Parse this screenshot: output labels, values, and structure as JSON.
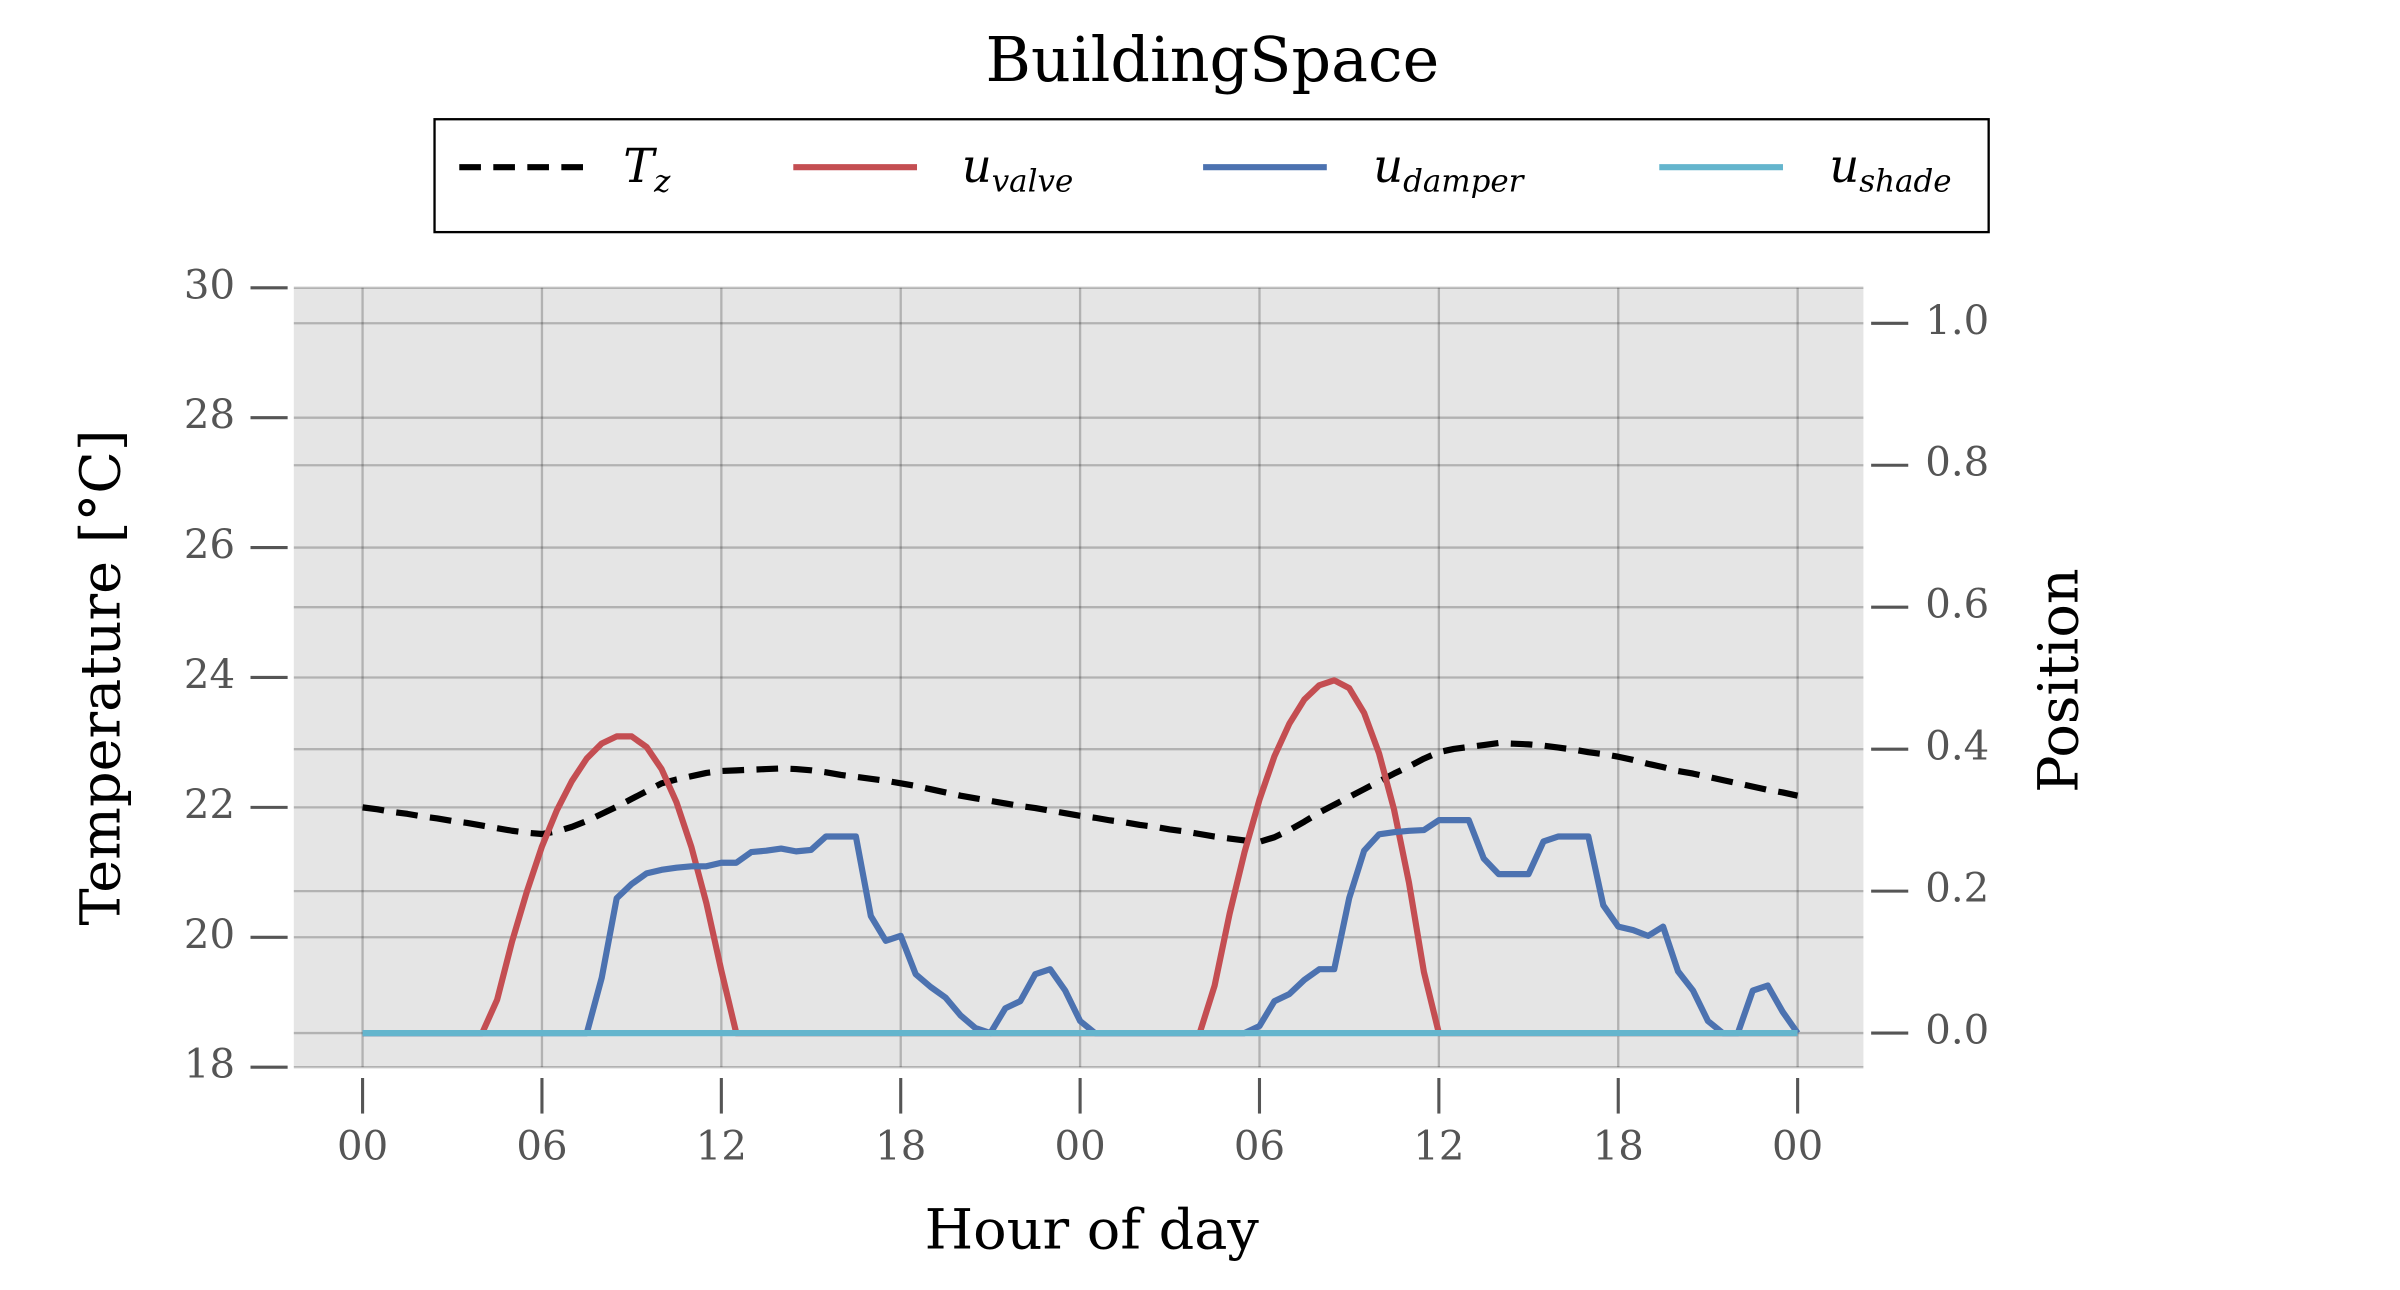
{
  "chart_data": {
    "type": "line",
    "title": "BuildingSpace",
    "xlabel": "Hour of day",
    "ylabel": "Temperature [°C]",
    "y2label": "Position",
    "legend": "upper center",
    "grid": true,
    "xlim": [
      -2.3,
      50.2
    ],
    "xticks": [
      {
        "value": 0,
        "label": "00"
      },
      {
        "value": 6,
        "label": "06"
      },
      {
        "value": 12,
        "label": "12"
      },
      {
        "value": 18,
        "label": "18"
      },
      {
        "value": 24,
        "label": "00"
      },
      {
        "value": 30,
        "label": "06"
      },
      {
        "value": 36,
        "label": "12"
      },
      {
        "value": 42,
        "label": "18"
      },
      {
        "value": 48,
        "label": "00"
      }
    ],
    "ylim": [
      18,
      30
    ],
    "yticks": [
      18,
      20,
      22,
      24,
      26,
      28,
      30
    ],
    "y2lim": [
      -0.048,
      1.05
    ],
    "y2ticks": [
      {
        "value": 0,
        "label": "0.0"
      },
      0.2,
      0.4,
      0.6,
      0.8,
      {
        "value": 1,
        "label": "1.0"
      }
    ],
    "x": [
      0,
      0.5,
      1,
      1.5,
      2,
      2.5,
      3,
      3.5,
      4,
      4.5,
      5,
      5.5,
      6,
      6.5,
      7,
      7.5,
      8,
      8.5,
      9,
      9.5,
      10,
      10.5,
      11,
      11.5,
      12,
      12.5,
      13,
      13.5,
      14,
      14.5,
      15,
      15.5,
      16,
      16.5,
      17,
      17.5,
      18,
      18.5,
      19,
      19.5,
      20,
      20.5,
      21,
      21.5,
      22,
      22.5,
      23,
      23.5,
      24,
      24.5,
      25,
      25.5,
      26,
      26.5,
      27,
      27.5,
      28,
      28.5,
      29,
      29.5,
      30,
      30.5,
      31,
      31.5,
      32,
      32.5,
      33,
      33.5,
      34,
      34.5,
      35,
      35.5,
      36,
      36.5,
      37,
      37.5,
      38,
      38.5,
      39,
      39.5,
      40,
      40.5,
      41,
      41.5,
      42,
      42.5,
      43,
      43.5,
      44,
      44.5,
      45,
      45.5,
      46,
      46.5,
      47,
      47.5,
      48
    ],
    "series": [
      {
        "name": "T_z",
        "color": "#000000",
        "linestyle": "dashed",
        "axis": "y",
        "values": [
          22.0,
          21.97,
          21.93,
          21.9,
          21.86,
          21.83,
          21.79,
          21.76,
          21.72,
          21.68,
          21.64,
          21.61,
          21.59,
          21.63,
          21.7,
          21.79,
          21.9,
          22.01,
          22.13,
          22.25,
          22.37,
          22.43,
          22.48,
          22.53,
          22.56,
          22.57,
          22.58,
          22.59,
          22.6,
          22.59,
          22.57,
          22.54,
          22.5,
          22.47,
          22.44,
          22.41,
          22.37,
          22.33,
          22.28,
          22.23,
          22.18,
          22.14,
          22.1,
          22.06,
          22.02,
          21.99,
          21.95,
          21.91,
          21.87,
          21.84,
          21.8,
          21.77,
          21.73,
          21.7,
          21.66,
          21.63,
          21.59,
          21.55,
          21.52,
          21.49,
          21.47,
          21.54,
          21.65,
          21.78,
          21.92,
          22.04,
          22.16,
          22.28,
          22.4,
          22.52,
          22.63,
          22.75,
          22.85,
          22.9,
          22.93,
          22.96,
          22.99,
          22.98,
          22.97,
          22.95,
          22.92,
          22.89,
          22.85,
          22.82,
          22.78,
          22.73,
          22.67,
          22.62,
          22.56,
          22.52,
          22.47,
          22.42,
          22.37,
          22.32,
          22.27,
          22.23,
          22.18
        ]
      },
      {
        "name": "u_valve",
        "color": "#c44e52",
        "linestyle": "solid",
        "axis": "y2",
        "values": [
          0,
          0,
          0,
          0,
          0,
          0,
          0,
          0,
          0,
          0.047,
          0.129,
          0.2,
          0.263,
          0.314,
          0.355,
          0.387,
          0.408,
          0.418,
          0.418,
          0.403,
          0.372,
          0.325,
          0.262,
          0.183,
          0.088,
          0,
          0,
          0,
          0,
          0,
          0,
          0,
          0,
          0,
          0,
          0,
          0,
          0,
          0,
          0,
          0,
          0,
          0,
          0,
          0,
          0,
          0,
          0,
          0,
          0,
          0,
          0,
          0,
          0,
          0,
          0,
          0,
          0.067,
          0.168,
          0.255,
          0.329,
          0.39,
          0.436,
          0.47,
          0.49,
          0.497,
          0.486,
          0.451,
          0.394,
          0.315,
          0.212,
          0.086,
          0,
          0,
          0,
          0,
          0,
          0,
          0,
          0,
          0,
          0,
          0,
          0,
          0,
          0,
          0,
          0,
          0,
          0,
          0,
          0,
          0,
          0,
          0,
          0,
          0
        ]
      },
      {
        "name": "u_damper",
        "color": "#4c72b0",
        "linestyle": "solid",
        "axis": "y2",
        "values": [
          0,
          0,
          0,
          0,
          0,
          0,
          0,
          0,
          0,
          0,
          0,
          0,
          0,
          0,
          0,
          0,
          0.078,
          0.19,
          0.21,
          0.225,
          0.23,
          0.233,
          0.235,
          0.235,
          0.24,
          0.24,
          0.255,
          0.257,
          0.26,
          0.256,
          0.258,
          0.277,
          0.277,
          0.277,
          0.165,
          0.13,
          0.137,
          0.083,
          0.065,
          0.05,
          0.025,
          0.007,
          0,
          0.035,
          0.045,
          0.083,
          0.09,
          0.06,
          0.017,
          0,
          0,
          0,
          0,
          0,
          0,
          0,
          0,
          0,
          0,
          0,
          0.01,
          0.045,
          0.055,
          0.075,
          0.09,
          0.09,
          0.19,
          0.257,
          0.28,
          0.283,
          0.285,
          0.286,
          0.3,
          0.3,
          0.3,
          0.246,
          0.224,
          0.224,
          0.224,
          0.27,
          0.277,
          0.277,
          0.277,
          0.18,
          0.15,
          0.145,
          0.137,
          0.15,
          0.087,
          0.06,
          0.017,
          0,
          0,
          0.06,
          0.067,
          0.03,
          0
        ]
      },
      {
        "name": "u_shade",
        "color": "#64b5cd",
        "linestyle": "solid",
        "axis": "y2",
        "values": [
          0,
          0,
          0,
          0,
          0,
          0,
          0,
          0,
          0,
          0,
          0,
          0,
          0,
          0,
          0,
          0,
          0,
          0,
          0,
          0,
          0,
          0,
          0,
          0,
          0,
          0,
          0,
          0,
          0,
          0,
          0,
          0,
          0,
          0,
          0,
          0,
          0,
          0,
          0,
          0,
          0,
          0,
          0,
          0,
          0,
          0,
          0,
          0,
          0,
          0,
          0,
          0,
          0,
          0,
          0,
          0,
          0,
          0,
          0,
          0,
          0,
          0,
          0,
          0,
          0,
          0,
          0,
          0,
          0,
          0,
          0,
          0,
          0,
          0,
          0,
          0,
          0,
          0,
          0,
          0,
          0,
          0,
          0,
          0,
          0,
          0,
          0,
          0,
          0,
          0,
          0,
          0,
          0,
          0,
          0,
          0,
          0
        ]
      }
    ]
  }
}
